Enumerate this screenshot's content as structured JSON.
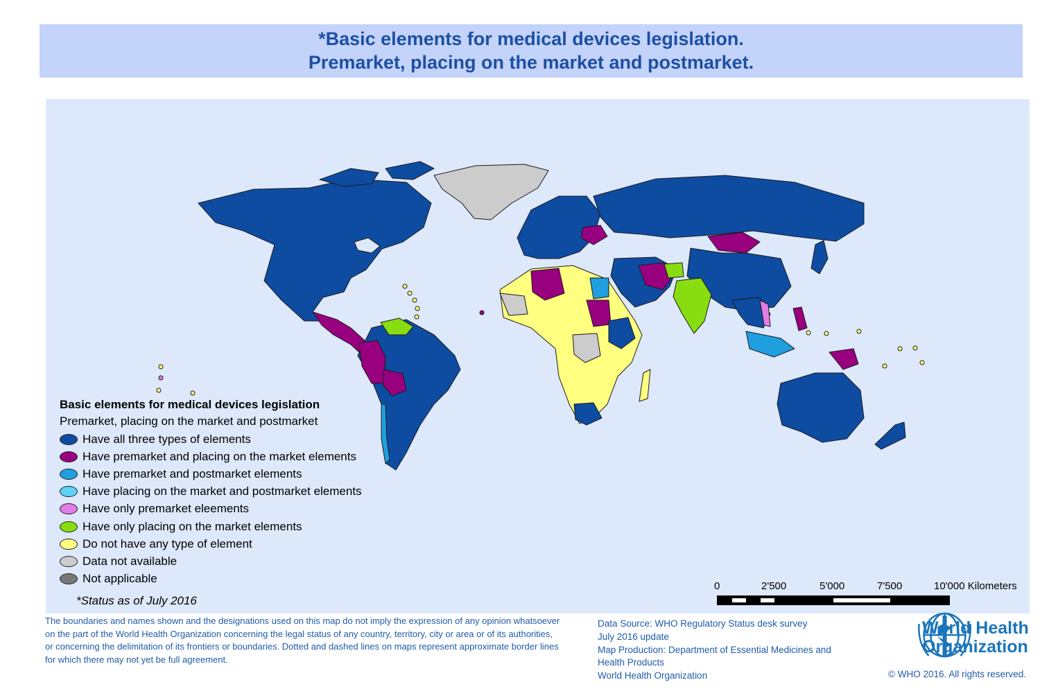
{
  "title": {
    "line1": "*Basic elements for medical devices legislation.",
    "line2": "Premarket, placing on the market and postmarket."
  },
  "legend": {
    "title": "Basic elements for medical devices legislation",
    "subtitle": "Premarket, placing on the market and postmarket",
    "items": [
      {
        "label": "Have all three types of elements",
        "color": "#0e4ca2"
      },
      {
        "label": "Have premarket and placing on the market elements",
        "color": "#990080"
      },
      {
        "label": "Have premarket and postmarket elements",
        "color": "#1f9fe0"
      },
      {
        "label": "Have placing on the market and postmarket elements",
        "color": "#5ed2f6"
      },
      {
        "label": "Have only premarket eleements",
        "color": "#e37ce6"
      },
      {
        "label": "Have only placing on the market elements",
        "color": "#88dd11"
      },
      {
        "label": "Do not have any type of element",
        "color": "#ffff80"
      },
      {
        "label": "Data not available",
        "color": "#cccccc"
      },
      {
        "label": "Not applicable",
        "color": "#777777"
      }
    ],
    "status_note": "*Status as of July 2016"
  },
  "scale_bar": {
    "labels": [
      "0",
      "2'500",
      "5'000",
      "7'500",
      "10'000 Kilometers"
    ]
  },
  "disclaimer": [
    "The boundaries and names shown and the designations used on this map do not imply the expression of any opinion whatsoever",
    "on the part of the World Health Organization concerning the legal status of any country, territory, city or area or of its authorities,",
    "or concerning the delimitation of its frontiers or boundaries.  Dotted and dashed lines on maps represent approximate border lines",
    "for which there may not yet be full agreement."
  ],
  "source": [
    "Data Source: WHO Regulatory Status desk survey",
    "July 2016 update",
    "Map Production: Department of Essential Medicines and",
    "Health Products",
    "World Health Organization"
  ],
  "logo": {
    "line1": "World Health",
    "line2": "Organization",
    "color": "#1b75bb"
  },
  "copyright": "© WHO 2016. All rights reserved.",
  "colors": {
    "banner": "#c3d3fa",
    "ocean": "#dde8fb",
    "title_text": "#1d4fa3"
  }
}
